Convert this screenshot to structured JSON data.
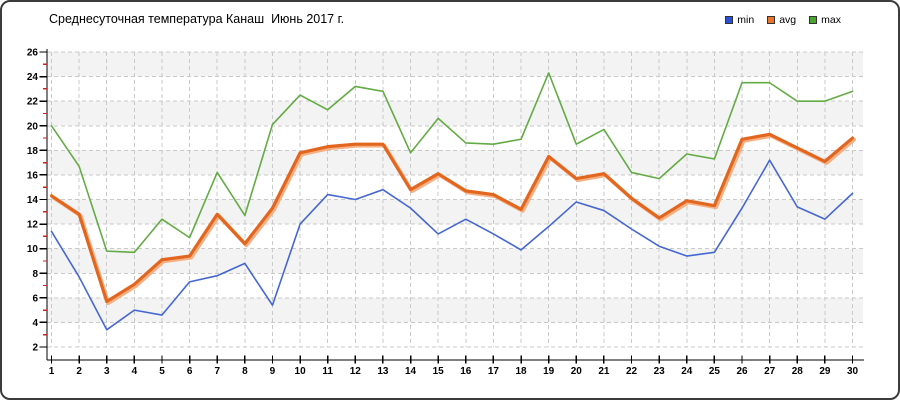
{
  "title": "Среднесуточная температура Канаш  Июнь 2017 г.",
  "legend": [
    {
      "label": "min",
      "color": "#2b4fd7"
    },
    {
      "label": "avg",
      "color": "#e8732a"
    },
    {
      "label": "max",
      "color": "#4aa52e"
    }
  ],
  "chart_data": {
    "type": "line",
    "title": "Среднесуточная температура Канаш  Июнь 2017 г.",
    "categories": [
      1,
      2,
      3,
      4,
      5,
      6,
      7,
      8,
      9,
      10,
      11,
      12,
      13,
      14,
      15,
      16,
      17,
      18,
      19,
      20,
      21,
      22,
      23,
      24,
      25,
      26,
      27,
      28,
      29,
      30
    ],
    "series": [
      {
        "name": "min",
        "color": "#4567d2",
        "line_width": 1.6,
        "values": [
          11.4,
          7.7,
          3.4,
          5.0,
          4.6,
          7.3,
          7.8,
          8.8,
          5.4,
          12.0,
          14.4,
          14.0,
          14.8,
          13.3,
          11.2,
          12.4,
          11.2,
          9.9,
          11.8,
          13.8,
          13.1,
          11.6,
          10.2,
          9.4,
          9.7,
          13.3,
          17.2,
          13.4,
          12.4,
          14.5
        ]
      },
      {
        "name": "avg",
        "color": "#e3661f",
        "halo_color": "#f6b083",
        "line_width": 3.2,
        "values": [
          14.3,
          12.8,
          5.7,
          7.1,
          9.1,
          9.4,
          12.8,
          10.4,
          13.3,
          17.8,
          18.3,
          18.5,
          18.5,
          14.8,
          16.1,
          14.7,
          14.4,
          13.2,
          17.5,
          15.7,
          16.1,
          14.1,
          12.5,
          13.9,
          13.5,
          18.9,
          19.3,
          18.2,
          17.1,
          19.0
        ]
      },
      {
        "name": "max",
        "color": "#63ab44",
        "line_width": 1.6,
        "values": [
          20.0,
          16.7,
          9.8,
          9.7,
          12.4,
          10.9,
          16.2,
          12.7,
          20.1,
          22.5,
          21.3,
          23.2,
          22.8,
          17.8,
          20.6,
          18.6,
          18.5,
          18.9,
          24.3,
          18.5,
          19.7,
          16.2,
          15.7,
          17.7,
          17.3,
          23.5,
          23.5,
          22.0,
          22.0,
          22.8
        ]
      }
    ],
    "xlabel": "",
    "ylabel": "",
    "ylim": [
      2,
      26
    ],
    "ytick_step": 2,
    "grid": "dashed",
    "grid_color": "#c9c9c9",
    "plot_band_colors": [
      "#f3f3f3",
      "#ffffff"
    ],
    "axis_color": "#000000",
    "axis_minor_tick_color": "#cc2222",
    "legend_position": "top-right"
  }
}
